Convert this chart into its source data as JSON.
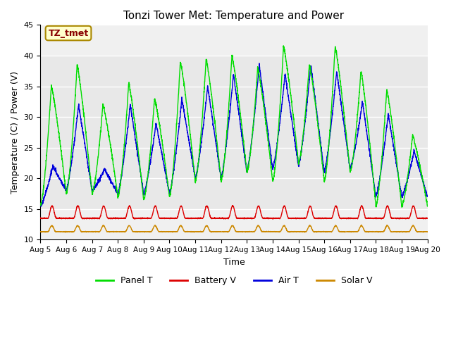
{
  "title": "Tonzi Tower Met: Temperature and Power",
  "xlabel": "Time",
  "ylabel": "Temperature (C) / Power (V)",
  "ylim": [
    10,
    45
  ],
  "xlim": [
    0,
    15
  ],
  "yticks": [
    10,
    15,
    20,
    25,
    30,
    35,
    40,
    45
  ],
  "xtick_labels": [
    "Aug 5",
    "Aug 6",
    "Aug 7",
    "Aug 8",
    "Aug 9",
    "Aug 10",
    "Aug 11",
    "Aug 12",
    "Aug 13",
    "Aug 14",
    "Aug 15",
    "Aug 16",
    "Aug 17",
    "Aug 18",
    "Aug 19",
    "Aug 20"
  ],
  "legend_labels": [
    "Panel T",
    "Battery V",
    "Air T",
    "Solar V"
  ],
  "legend_colors": [
    "#00dd00",
    "#dd0000",
    "#0000dd",
    "#cc8800"
  ],
  "annotation_text": "TZ_tmet",
  "annotation_bg": "#ffffcc",
  "annotation_border": "#aa8800",
  "annotation_text_color": "#880000",
  "shaded_band_ymin": 15,
  "shaded_band_ymax": 40,
  "shaded_band_color": "#e8e8e8",
  "bg_color": "#f0f0f0",
  "panel_peaks": [
    35,
    38.5,
    32,
    35.5,
    33,
    39,
    39.5,
    40,
    38,
    41.5,
    38.5,
    41.5,
    37.5,
    34.5,
    27,
    28.5
  ],
  "panel_troughs": [
    15.5,
    17.5,
    17.5,
    17.0,
    16.5,
    17.0,
    19.5,
    19.5,
    21.0,
    19.5,
    22.5,
    19.5,
    21.0,
    15.5,
    15.5,
    14.5
  ],
  "air_peaks": [
    22,
    32,
    21.5,
    32,
    29,
    33,
    35,
    37,
    38.5,
    37,
    38.5,
    37.5,
    32.5,
    30.5,
    24.5,
    25
  ],
  "air_troughs": [
    15.5,
    18,
    18,
    17.5,
    17.5,
    17.5,
    20,
    20,
    21,
    21.5,
    22,
    21,
    21.5,
    17.0,
    17.0,
    15.5
  ],
  "battery_base": 13.5,
  "battery_peak": 15.5,
  "solar_base": 11.3,
  "solar_peak": 12.3
}
